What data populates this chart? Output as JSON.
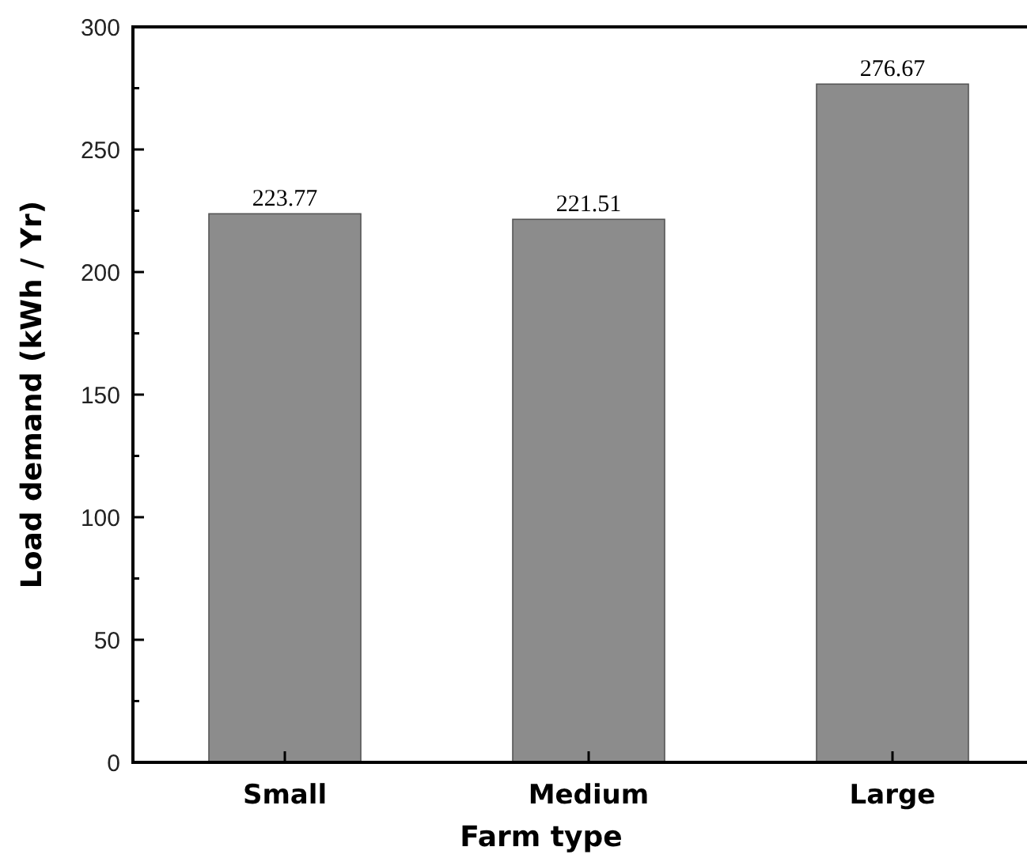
{
  "chart_data": {
    "type": "bar",
    "xlabel": "Farm type",
    "ylabel": "Load demand (kWh / Yr)",
    "categories": [
      "Small",
      "Medium",
      "Large"
    ],
    "values": [
      223.77,
      221.51,
      276.67
    ],
    "color": "#8c8c8c",
    "data_labels": true,
    "ylim": [
      0,
      300
    ],
    "yticks": [
      0,
      {
        "value": 25,
        "label": null
      },
      50,
      {
        "value": 75,
        "label": null
      },
      100,
      {
        "value": 125,
        "label": null
      },
      150,
      {
        "value": 175,
        "label": null
      },
      200,
      {
        "value": 225,
        "label": null
      },
      250,
      {
        "value": 275,
        "label": null
      },
      300
    ],
    "grid": false
  }
}
